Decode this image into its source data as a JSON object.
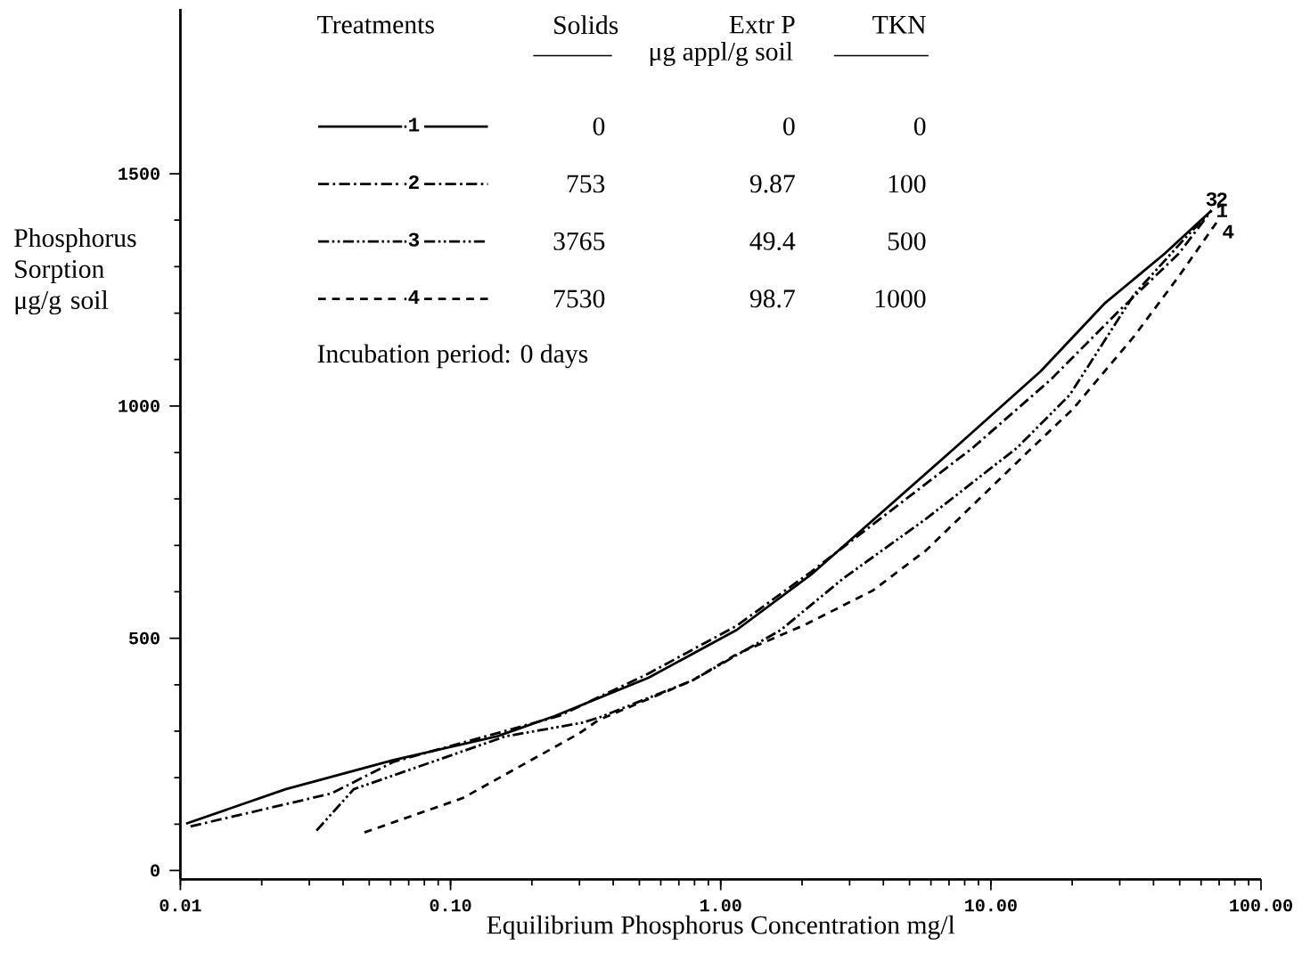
{
  "chart_data": {
    "type": "line",
    "xlabel": "Equilibrium Phosphorus Concentration mg/l",
    "ylabel": "Phosphorus Sorption μg/g soil",
    "log": "x",
    "legend": "top left",
    "xlim": [
      0.01,
      100
    ],
    "ylim": [
      -19,
      1855
    ],
    "xticks": [
      {
        "value": 0.01,
        "label": "0.01"
      },
      {
        "value": 0.1,
        "label": "0.10"
      },
      {
        "value": 1,
        "label": "1.00"
      },
      {
        "value": 10,
        "label": "10.00"
      },
      {
        "value": 100,
        "label": "100.00"
      }
    ],
    "yticks": [
      0,
      500,
      1000,
      1500
    ],
    "annotations": [
      "Treatments",
      "Solids",
      "Extr P",
      "TKN",
      "μg appl/g soil",
      "0",
      "0",
      "0",
      "753",
      "9.87",
      "100",
      "3765",
      "49.4",
      "500",
      "7530",
      "98.7",
      "1000",
      "Incubation period:  0 days"
    ],
    "series": [
      {
        "name": "1",
        "color": "#000000",
        "line_style": "solid",
        "x": [
          0.0105,
          0.0245,
          0.0615,
          0.149,
          0.244,
          0.54,
          1.146,
          2.16,
          7.37,
          15.3,
          26.5,
          44.0,
          65.6
        ],
        "values": [
          101,
          175,
          238,
          289,
          333,
          415,
          518,
          637,
          910,
          1075,
          1222,
          1328,
          1421
        ]
      },
      {
        "name": "2",
        "color": "#000000",
        "line_style": "dashdot",
        "x": [
          0.0109,
          0.0363,
          0.0615,
          0.253,
          0.54,
          1.146,
          2.16,
          8.57,
          16.6,
          30.2,
          49.6,
          65.6
        ],
        "values": [
          95,
          166,
          234,
          333,
          424,
          527,
          643,
          910,
          1056,
          1208,
          1328,
          1421
        ]
      },
      {
        "name": "3",
        "color": "#000000",
        "line_style": "dashdotdot",
        "x": [
          0.0319,
          0.0438,
          0.16,
          0.306,
          0.353,
          0.785,
          1.67,
          2.83,
          5.75,
          12.5,
          19.6,
          34.0,
          52.3,
          65.6
        ],
        "values": [
          86,
          175,
          289,
          318,
          329,
          409,
          518,
          628,
          757,
          910,
          1024,
          1241,
          1361,
          1421
        ]
      },
      {
        "name": "4",
        "color": "#000000",
        "line_style": "dashed",
        "x": [
          0.048,
          0.111,
          0.299,
          0.353,
          0.785,
          1.146,
          2.05,
          3.66,
          5.75,
          14.2,
          20.1,
          34.0,
          49.6,
          69.2
        ],
        "values": [
          82,
          156,
          295,
          324,
          409,
          466,
          529,
          603,
          689,
          910,
          993,
          1151,
          1279,
          1399
        ]
      }
    ]
  }
}
